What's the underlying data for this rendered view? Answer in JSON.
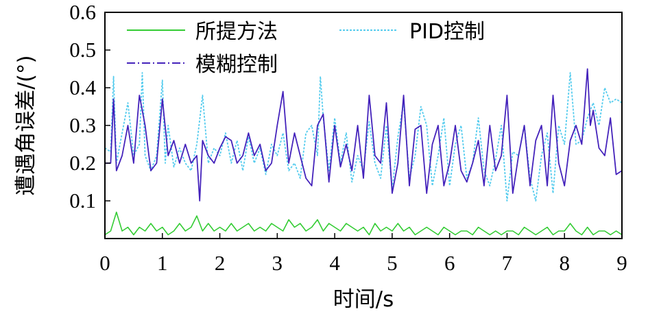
{
  "chart_data": {
    "type": "line",
    "xlabel": "时间/s",
    "ylabel": "遭遇角误差/(°)",
    "xlim": [
      0,
      9
    ],
    "ylim": [
      0,
      0.6
    ],
    "xticks": [
      "0",
      "1",
      "2",
      "3",
      "4",
      "5",
      "6",
      "7",
      "8",
      "9"
    ],
    "yticks": [
      "0.1",
      "0.2",
      "0.3",
      "0.4",
      "0.5",
      "0.6"
    ],
    "xtick_values": [
      0,
      1,
      2,
      3,
      4,
      5,
      6,
      7,
      8,
      9
    ],
    "ytick_values": [
      0.1,
      0.2,
      0.3,
      0.4,
      0.5,
      0.6
    ],
    "grid": false,
    "legend_position": "top",
    "series": [
      {
        "name": "所提方法",
        "color": "#33cc33",
        "style": "solid",
        "x": [
          0,
          0.1,
          0.2,
          0.3,
          0.4,
          0.5,
          0.6,
          0.7,
          0.8,
          0.9,
          1.0,
          1.1,
          1.2,
          1.3,
          1.4,
          1.5,
          1.6,
          1.7,
          1.8,
          1.9,
          2.0,
          2.1,
          2.2,
          2.3,
          2.4,
          2.5,
          2.6,
          2.7,
          2.8,
          2.9,
          3.0,
          3.1,
          3.2,
          3.3,
          3.4,
          3.5,
          3.6,
          3.7,
          3.8,
          3.9,
          4.0,
          4.1,
          4.2,
          4.3,
          4.4,
          4.5,
          4.6,
          4.7,
          4.8,
          4.9,
          5.0,
          5.1,
          5.2,
          5.3,
          5.4,
          5.5,
          5.6,
          5.7,
          5.8,
          5.9,
          6.0,
          6.1,
          6.2,
          6.3,
          6.4,
          6.5,
          6.6,
          6.7,
          6.8,
          6.9,
          7.0,
          7.1,
          7.2,
          7.3,
          7.4,
          7.5,
          7.6,
          7.7,
          7.8,
          7.9,
          8.0,
          8.1,
          8.2,
          8.3,
          8.4,
          8.5,
          8.6,
          8.7,
          8.8,
          8.9,
          9.0
        ],
        "y": [
          0.01,
          0.02,
          0.07,
          0.02,
          0.03,
          0.01,
          0.03,
          0.02,
          0.04,
          0.02,
          0.03,
          0.01,
          0.02,
          0.04,
          0.02,
          0.03,
          0.06,
          0.02,
          0.04,
          0.02,
          0.03,
          0.02,
          0.04,
          0.02,
          0.03,
          0.04,
          0.02,
          0.03,
          0.02,
          0.04,
          0.03,
          0.02,
          0.05,
          0.03,
          0.04,
          0.02,
          0.03,
          0.05,
          0.02,
          0.04,
          0.03,
          0.02,
          0.04,
          0.03,
          0.02,
          0.03,
          0.01,
          0.04,
          0.02,
          0.03,
          0.02,
          0.04,
          0.02,
          0.03,
          0.01,
          0.02,
          0.03,
          0.02,
          0.01,
          0.03,
          0.02,
          0.01,
          0.02,
          0.02,
          0.01,
          0.03,
          0.02,
          0.01,
          0.02,
          0.01,
          0.02,
          0.02,
          0.01,
          0.03,
          0.02,
          0.01,
          0.02,
          0.03,
          0.01,
          0.02,
          0.02,
          0.04,
          0.02,
          0.01,
          0.03,
          0.01,
          0.02,
          0.02,
          0.01,
          0.02,
          0.01
        ]
      },
      {
        "name": "PID控制",
        "color": "#55ccee",
        "style": "dashed",
        "x": [
          0,
          0.1,
          0.15,
          0.2,
          0.3,
          0.4,
          0.5,
          0.6,
          0.65,
          0.7,
          0.8,
          0.9,
          1.0,
          1.05,
          1.1,
          1.2,
          1.3,
          1.4,
          1.5,
          1.6,
          1.7,
          1.8,
          1.9,
          2.0,
          2.1,
          2.2,
          2.3,
          2.4,
          2.5,
          2.6,
          2.7,
          2.8,
          2.9,
          3.0,
          3.1,
          3.2,
          3.3,
          3.4,
          3.5,
          3.6,
          3.7,
          3.75,
          3.8,
          3.9,
          4.0,
          4.1,
          4.2,
          4.3,
          4.4,
          4.5,
          4.6,
          4.7,
          4.8,
          4.9,
          5.0,
          5.1,
          5.2,
          5.3,
          5.4,
          5.5,
          5.6,
          5.7,
          5.8,
          5.9,
          6.0,
          6.1,
          6.2,
          6.3,
          6.4,
          6.5,
          6.6,
          6.7,
          6.8,
          6.9,
          7.0,
          7.1,
          7.2,
          7.3,
          7.4,
          7.5,
          7.6,
          7.7,
          7.8,
          7.9,
          8.0,
          8.1,
          8.2,
          8.3,
          8.4,
          8.5,
          8.6,
          8.7,
          8.8,
          8.9,
          9.0
        ],
        "y": [
          0.24,
          0.23,
          0.43,
          0.2,
          0.28,
          0.36,
          0.22,
          0.25,
          0.44,
          0.22,
          0.18,
          0.22,
          0.42,
          0.2,
          0.3,
          0.19,
          0.24,
          0.2,
          0.18,
          0.25,
          0.38,
          0.2,
          0.24,
          0.22,
          0.28,
          0.2,
          0.26,
          0.18,
          0.27,
          0.2,
          0.24,
          0.17,
          0.25,
          0.22,
          0.28,
          0.18,
          0.2,
          0.16,
          0.28,
          0.3,
          0.22,
          0.43,
          0.32,
          0.18,
          0.32,
          0.2,
          0.28,
          0.15,
          0.22,
          0.18,
          0.31,
          0.2,
          0.16,
          0.3,
          0.13,
          0.27,
          0.36,
          0.16,
          0.22,
          0.35,
          0.3,
          0.14,
          0.22,
          0.32,
          0.14,
          0.25,
          0.3,
          0.16,
          0.2,
          0.32,
          0.18,
          0.14,
          0.21,
          0.3,
          0.1,
          0.23,
          0.22,
          0.3,
          0.16,
          0.1,
          0.22,
          0.28,
          0.12,
          0.3,
          0.25,
          0.44,
          0.25,
          0.26,
          0.32,
          0.36,
          0.3,
          0.4,
          0.36,
          0.37,
          0.36
        ]
      },
      {
        "name": "模糊控制",
        "color": "#4422bb",
        "style": "dashdot",
        "x": [
          0,
          0.1,
          0.15,
          0.2,
          0.3,
          0.4,
          0.5,
          0.6,
          0.7,
          0.8,
          0.9,
          1.0,
          1.1,
          1.2,
          1.3,
          1.4,
          1.5,
          1.6,
          1.65,
          1.7,
          1.8,
          1.9,
          2.0,
          2.1,
          2.2,
          2.3,
          2.4,
          2.5,
          2.6,
          2.7,
          2.8,
          2.9,
          3.0,
          3.1,
          3.2,
          3.3,
          3.4,
          3.5,
          3.6,
          3.7,
          3.8,
          3.9,
          4.0,
          4.1,
          4.2,
          4.3,
          4.4,
          4.5,
          4.6,
          4.7,
          4.8,
          4.9,
          5.0,
          5.1,
          5.2,
          5.3,
          5.4,
          5.5,
          5.6,
          5.7,
          5.8,
          5.9,
          6.0,
          6.1,
          6.2,
          6.3,
          6.4,
          6.5,
          6.6,
          6.7,
          6.8,
          6.9,
          7.0,
          7.1,
          7.2,
          7.3,
          7.4,
          7.5,
          7.6,
          7.7,
          7.8,
          7.9,
          8.0,
          8.1,
          8.2,
          8.3,
          8.4,
          8.45,
          8.5,
          8.6,
          8.7,
          8.8,
          8.9,
          9.0
        ],
        "y": [
          0.2,
          0.2,
          0.37,
          0.18,
          0.22,
          0.3,
          0.2,
          0.38,
          0.3,
          0.18,
          0.2,
          0.37,
          0.22,
          0.26,
          0.2,
          0.25,
          0.2,
          0.22,
          0.1,
          0.26,
          0.22,
          0.2,
          0.24,
          0.27,
          0.26,
          0.2,
          0.22,
          0.28,
          0.22,
          0.25,
          0.18,
          0.2,
          0.3,
          0.39,
          0.2,
          0.28,
          0.22,
          0.16,
          0.14,
          0.3,
          0.33,
          0.15,
          0.3,
          0.19,
          0.25,
          0.18,
          0.3,
          0.16,
          0.38,
          0.22,
          0.2,
          0.36,
          0.12,
          0.2,
          0.38,
          0.14,
          0.29,
          0.3,
          0.12,
          0.25,
          0.3,
          0.14,
          0.2,
          0.3,
          0.18,
          0.15,
          0.2,
          0.26,
          0.14,
          0.3,
          0.18,
          0.22,
          0.38,
          0.12,
          0.22,
          0.3,
          0.14,
          0.26,
          0.3,
          0.14,
          0.38,
          0.2,
          0.14,
          0.26,
          0.3,
          0.25,
          0.45,
          0.3,
          0.34,
          0.24,
          0.22,
          0.32,
          0.17,
          0.18
        ]
      }
    ]
  }
}
